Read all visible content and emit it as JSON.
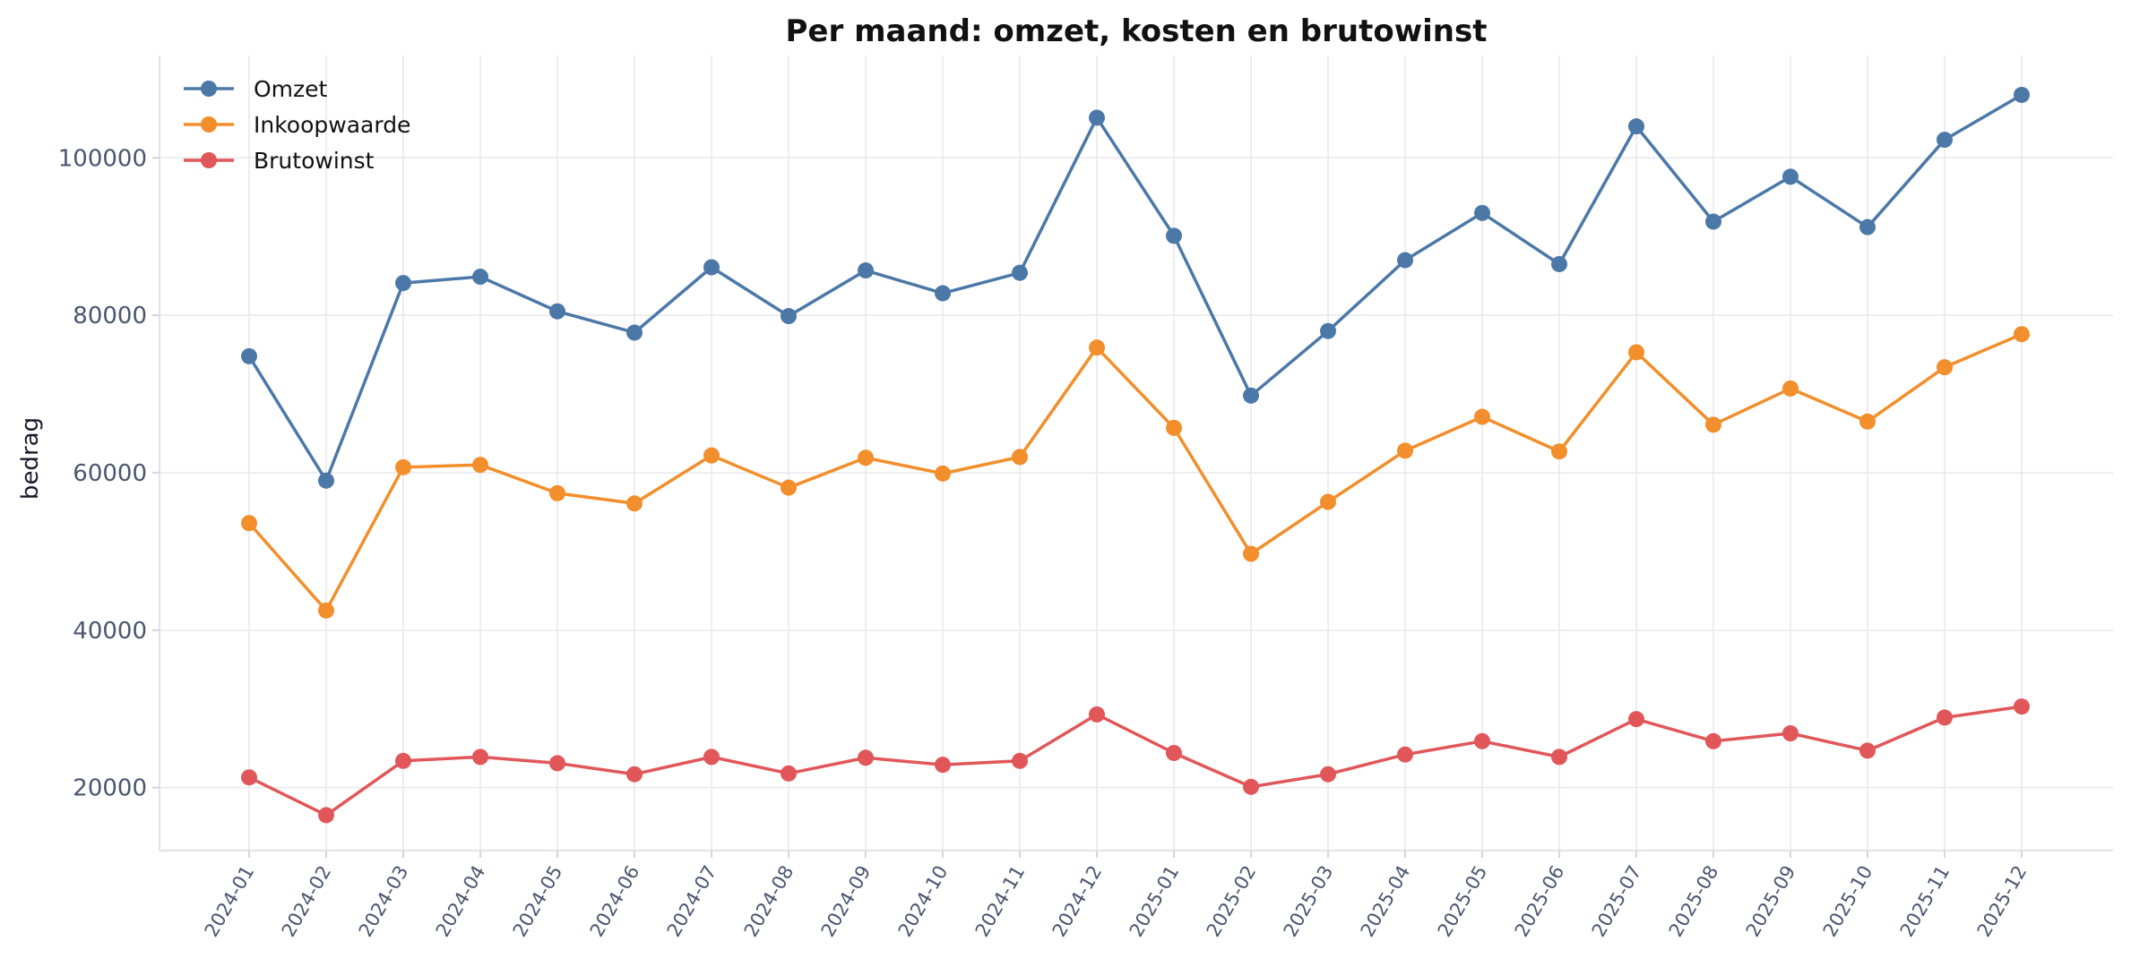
{
  "chart_data": {
    "type": "line",
    "title": "Per maand: omzet, kosten en brutowinst",
    "xlabel": "",
    "ylabel": "bedrag",
    "ylim": [
      12000,
      113000
    ],
    "yticks": [
      20000,
      40000,
      60000,
      80000,
      100000
    ],
    "grid": true,
    "legend_position": "top-left",
    "categories": [
      "2024-01",
      "2024-02",
      "2024-03",
      "2024-04",
      "2024-05",
      "2024-06",
      "2024-07",
      "2024-08",
      "2024-09",
      "2024-10",
      "2024-11",
      "2024-12",
      "2025-01",
      "2025-02",
      "2025-03",
      "2025-04",
      "2025-05",
      "2025-06",
      "2025-07",
      "2025-08",
      "2025-09",
      "2025-10",
      "2025-11",
      "2025-12"
    ],
    "series": [
      {
        "name": "Omzet",
        "color": "#4c78a8",
        "values": [
          74800,
          59000,
          84100,
          84900,
          80500,
          77800,
          86100,
          79900,
          85700,
          82800,
          85400,
          105100,
          90100,
          69800,
          78000,
          87000,
          93000,
          86500,
          104000,
          91900,
          97600,
          91200,
          102300,
          108000
        ]
      },
      {
        "name": "Inkoopwaarde",
        "color": "#f28e2b",
        "values": [
          53600,
          42500,
          60700,
          61000,
          57400,
          56100,
          62200,
          58100,
          61900,
          59900,
          62000,
          75900,
          65700,
          49700,
          56300,
          62800,
          67100,
          62700,
          75300,
          66100,
          70700,
          66500,
          73400,
          77600
        ]
      },
      {
        "name": "Brutowinst",
        "color": "#e15759",
        "values": [
          21300,
          16500,
          23400,
          23900,
          23100,
          21700,
          23900,
          21800,
          23800,
          22900,
          23400,
          29300,
          24400,
          20100,
          21700,
          24200,
          25900,
          23900,
          28700,
          25900,
          26900,
          24700,
          28900,
          30300
        ]
      }
    ]
  }
}
